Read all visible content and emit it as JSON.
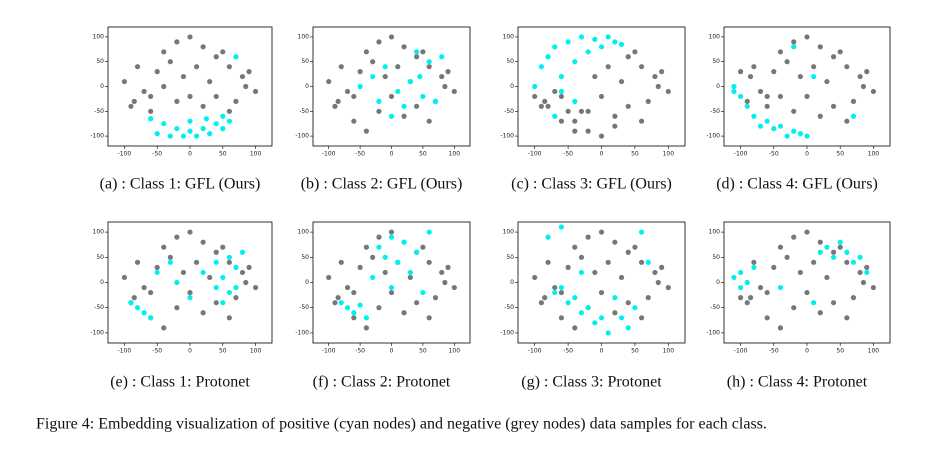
{
  "chart_data": [
    {
      "type": "scatter",
      "title": "(a) : Class 1: GFL (Ours)",
      "xlim": [
        -125,
        125
      ],
      "ylim": [
        -120,
        120
      ],
      "xticks": [
        -100,
        -50,
        0,
        50,
        100
      ],
      "yticks": [
        -100,
        -50,
        0,
        50,
        100
      ],
      "series": [
        {
          "color": "#777777",
          "x": [
            -100,
            -80,
            -60,
            -40,
            -20,
            0,
            20,
            40,
            60,
            80,
            100,
            -90,
            -70,
            -50,
            -30,
            -10,
            10,
            30,
            50,
            70,
            90,
            -60,
            -20,
            20,
            60,
            -40,
            0,
            40,
            -85,
            85
          ],
          "y": [
            10,
            40,
            -20,
            70,
            90,
            100,
            80,
            60,
            40,
            20,
            -10,
            -40,
            -10,
            30,
            50,
            20,
            40,
            10,
            70,
            -30,
            30,
            -50,
            -30,
            -40,
            -50,
            0,
            -20,
            -20,
            -30,
            0
          ]
        },
        {
          "color": "#00f0f0",
          "x": [
            -60,
            -40,
            -20,
            0,
            20,
            40,
            60,
            -50,
            -30,
            -10,
            10,
            30,
            50,
            0,
            25,
            50,
            70
          ],
          "y": [
            -65,
            -75,
            -85,
            -90,
            -85,
            -75,
            -70,
            -95,
            -100,
            -100,
            -100,
            -95,
            -85,
            -70,
            -65,
            -60,
            60
          ]
        }
      ]
    },
    {
      "type": "scatter",
      "title": "(b) : Class 2: GFL (Ours)",
      "xlim": [
        -125,
        125
      ],
      "ylim": [
        -120,
        120
      ],
      "xticks": [
        -100,
        -50,
        0,
        50,
        100
      ],
      "yticks": [
        -100,
        -50,
        0,
        50,
        100
      ],
      "series": [
        {
          "color": "#777777",
          "x": [
            -100,
            -80,
            -60,
            -40,
            -20,
            0,
            20,
            40,
            60,
            80,
            100,
            -90,
            -70,
            -50,
            -30,
            -10,
            10,
            30,
            50,
            70,
            90,
            -60,
            -20,
            20,
            60,
            -40,
            0,
            40,
            -85,
            85
          ],
          "y": [
            10,
            40,
            -20,
            70,
            90,
            100,
            80,
            60,
            40,
            20,
            -10,
            -40,
            -10,
            30,
            50,
            20,
            40,
            10,
            70,
            -30,
            30,
            -70,
            -50,
            -60,
            -70,
            -90,
            -20,
            -40,
            -30,
            0
          ]
        },
        {
          "color": "#00f0f0",
          "x": [
            -30,
            -10,
            10,
            30,
            50,
            70,
            60,
            40,
            -50,
            20,
            0,
            80,
            -20,
            45
          ],
          "y": [
            20,
            40,
            -10,
            10,
            -20,
            -30,
            50,
            70,
            0,
            -40,
            -60,
            60,
            -30,
            20
          ]
        }
      ]
    },
    {
      "type": "scatter",
      "title": "(c) : Class 3: GFL (Ours)",
      "xlim": [
        -125,
        125
      ],
      "ylim": [
        -120,
        120
      ],
      "xticks": [
        -100,
        -50,
        0,
        50,
        100
      ],
      "yticks": [
        -100,
        -50,
        0,
        50,
        100
      ],
      "series": [
        {
          "color": "#777777",
          "x": [
            -100,
            -80,
            -60,
            -40,
            -20,
            0,
            20,
            40,
            60,
            80,
            100,
            -90,
            -70,
            -50,
            -30,
            -10,
            10,
            30,
            50,
            70,
            90,
            -60,
            -20,
            20,
            60,
            -40,
            0,
            40,
            -85,
            85
          ],
          "y": [
            -20,
            -40,
            -20,
            -70,
            -90,
            -100,
            -80,
            60,
            40,
            20,
            -10,
            -40,
            -10,
            -50,
            -50,
            20,
            40,
            10,
            70,
            -30,
            30,
            -70,
            -50,
            -60,
            -70,
            -90,
            -20,
            -40,
            -30,
            0
          ]
        },
        {
          "color": "#00f0f0",
          "x": [
            -90,
            -80,
            -70,
            -60,
            -50,
            -40,
            -30,
            -20,
            -10,
            0,
            10,
            20,
            30,
            -100,
            -60,
            -40,
            -70
          ],
          "y": [
            40,
            60,
            80,
            20,
            90,
            50,
            100,
            70,
            95,
            80,
            100,
            90,
            85,
            0,
            -10,
            -30,
            -60
          ]
        }
      ]
    },
    {
      "type": "scatter",
      "title": "(d) : Class 4: GFL (Ours)",
      "xlim": [
        -125,
        125
      ],
      "ylim": [
        -120,
        120
      ],
      "xticks": [
        -100,
        -50,
        0,
        50,
        100
      ],
      "yticks": [
        -100,
        -50,
        0,
        50,
        100
      ],
      "series": [
        {
          "color": "#777777",
          "x": [
            -100,
            -80,
            -60,
            -40,
            -20,
            0,
            20,
            40,
            60,
            80,
            100,
            -90,
            -70,
            -50,
            -30,
            -10,
            10,
            30,
            50,
            70,
            90,
            -60,
            -20,
            20,
            60,
            -40,
            0,
            40,
            -85,
            85
          ],
          "y": [
            30,
            40,
            -20,
            70,
            90,
            100,
            80,
            60,
            40,
            20,
            -10,
            -30,
            -10,
            30,
            50,
            20,
            40,
            10,
            70,
            -30,
            30,
            -40,
            -50,
            -60,
            -70,
            -20,
            -20,
            -40,
            20,
            0
          ]
        },
        {
          "color": "#00f0f0",
          "x": [
            -110,
            -100,
            -90,
            -80,
            -60,
            -40,
            -20,
            0,
            -30,
            -10,
            -70,
            -50,
            -110,
            -20,
            10,
            70
          ],
          "y": [
            0,
            -20,
            -40,
            -60,
            -70,
            -80,
            -90,
            -100,
            -100,
            -95,
            -80,
            -85,
            -10,
            80,
            20,
            -60
          ]
        }
      ]
    },
    {
      "type": "scatter",
      "title": "(e) : Class 1: Protonet",
      "xlim": [
        -125,
        125
      ],
      "ylim": [
        -120,
        120
      ],
      "xticks": [
        -100,
        -50,
        0,
        50,
        100
      ],
      "yticks": [
        -100,
        -50,
        0,
        50,
        100
      ],
      "series": [
        {
          "color": "#777777",
          "x": [
            -100,
            -80,
            -60,
            -40,
            -20,
            0,
            20,
            40,
            60,
            80,
            100,
            -90,
            -70,
            -50,
            -30,
            -10,
            10,
            30,
            50,
            70,
            90,
            -60,
            -20,
            20,
            60,
            -40,
            0,
            40,
            -85,
            85
          ],
          "y": [
            10,
            40,
            -20,
            70,
            90,
            100,
            80,
            60,
            40,
            20,
            -10,
            -40,
            -10,
            30,
            50,
            20,
            40,
            10,
            70,
            -30,
            30,
            -70,
            -50,
            -60,
            -70,
            -90,
            -20,
            -40,
            -30,
            0
          ]
        },
        {
          "color": "#00f0f0",
          "x": [
            40,
            50,
            60,
            70,
            80,
            50,
            60,
            70,
            -80,
            -70,
            -60,
            -90,
            -20,
            0,
            20,
            40,
            -50,
            -30
          ],
          "y": [
            40,
            10,
            -20,
            30,
            60,
            -40,
            50,
            -10,
            -50,
            -60,
            -70,
            -40,
            0,
            -30,
            20,
            -10,
            20,
            40
          ]
        }
      ]
    },
    {
      "type": "scatter",
      "title": "(f) : Class 2: Protonet",
      "xlim": [
        -125,
        125
      ],
      "ylim": [
        -120,
        120
      ],
      "xticks": [
        -100,
        -50,
        0,
        50,
        100
      ],
      "yticks": [
        -100,
        -50,
        0,
        50,
        100
      ],
      "series": [
        {
          "color": "#777777",
          "x": [
            -100,
            -80,
            -60,
            -40,
            -20,
            0,
            20,
            40,
            60,
            80,
            100,
            -90,
            -70,
            -50,
            -30,
            -10,
            10,
            30,
            50,
            70,
            90,
            -60,
            -20,
            20,
            60,
            -40,
            0,
            40,
            -85,
            85
          ],
          "y": [
            10,
            40,
            -20,
            70,
            90,
            100,
            80,
            60,
            40,
            20,
            -10,
            -40,
            -10,
            30,
            50,
            20,
            40,
            10,
            70,
            -30,
            30,
            -70,
            -50,
            -60,
            -70,
            -90,
            -20,
            -40,
            -30,
            0
          ]
        },
        {
          "color": "#00f0f0",
          "x": [
            -20,
            0,
            20,
            40,
            -10,
            10,
            30,
            -80,
            -70,
            -60,
            -50,
            -40,
            50,
            -30,
            60,
            0
          ],
          "y": [
            70,
            90,
            80,
            60,
            50,
            40,
            20,
            -40,
            -50,
            -60,
            -45,
            -70,
            -20,
            10,
            100,
            -10
          ]
        }
      ]
    },
    {
      "type": "scatter",
      "title": "(g) : Class 3: Protonet",
      "xlim": [
        -125,
        125
      ],
      "ylim": [
        -120,
        120
      ],
      "xticks": [
        -100,
        -50,
        0,
        50,
        100
      ],
      "yticks": [
        -100,
        -50,
        0,
        50,
        100
      ],
      "series": [
        {
          "color": "#777777",
          "x": [
            -100,
            -80,
            -60,
            -40,
            -20,
            0,
            20,
            40,
            60,
            80,
            100,
            -90,
            -70,
            -50,
            -30,
            -10,
            10,
            30,
            50,
            70,
            90,
            -60,
            -20,
            20,
            60,
            -40,
            0,
            40,
            -85,
            85
          ],
          "y": [
            10,
            40,
            -20,
            70,
            90,
            100,
            80,
            60,
            40,
            20,
            -10,
            -40,
            -10,
            30,
            50,
            20,
            40,
            10,
            70,
            -30,
            30,
            -70,
            -50,
            -60,
            -70,
            -90,
            -20,
            -40,
            -30,
            0
          ]
        },
        {
          "color": "#00f0f0",
          "x": [
            -70,
            -50,
            -30,
            -10,
            10,
            30,
            50,
            -60,
            -40,
            -20,
            0,
            20,
            40,
            -80,
            -60,
            60,
            70,
            -30
          ],
          "y": [
            -20,
            -40,
            -60,
            -80,
            -100,
            -70,
            -50,
            -10,
            -30,
            -50,
            -70,
            -30,
            -90,
            90,
            110,
            100,
            40,
            20
          ]
        }
      ]
    },
    {
      "type": "scatter",
      "title": "(h) : Class 4: Protonet",
      "xlim": [
        -125,
        125
      ],
      "ylim": [
        -120,
        120
      ],
      "xticks": [
        -100,
        -50,
        0,
        50,
        100
      ],
      "yticks": [
        -100,
        -50,
        0,
        50,
        100
      ],
      "series": [
        {
          "color": "#777777",
          "x": [
            -100,
            -80,
            -60,
            -40,
            -20,
            0,
            20,
            40,
            60,
            80,
            100,
            -90,
            -70,
            -50,
            -30,
            -10,
            10,
            30,
            50,
            70,
            90,
            -60,
            -20,
            20,
            60,
            -40,
            0,
            40,
            -85,
            85
          ],
          "y": [
            -30,
            40,
            -20,
            70,
            90,
            100,
            80,
            60,
            40,
            20,
            -10,
            -40,
            -10,
            30,
            50,
            20,
            40,
            10,
            70,
            -30,
            30,
            -70,
            -50,
            -60,
            -70,
            -90,
            -20,
            -40,
            -30,
            0
          ]
        },
        {
          "color": "#00f0f0",
          "x": [
            -110,
            -100,
            -90,
            -80,
            -100,
            20,
            30,
            40,
            50,
            60,
            70,
            80,
            90,
            -40,
            10
          ],
          "y": [
            10,
            20,
            0,
            30,
            -10,
            60,
            70,
            50,
            80,
            60,
            40,
            50,
            20,
            -10,
            -40
          ]
        }
      ]
    }
  ],
  "caption": "Figure 4: Embedding visualization of positive (cyan nodes) and negative (grey nodes) data samples for each class."
}
